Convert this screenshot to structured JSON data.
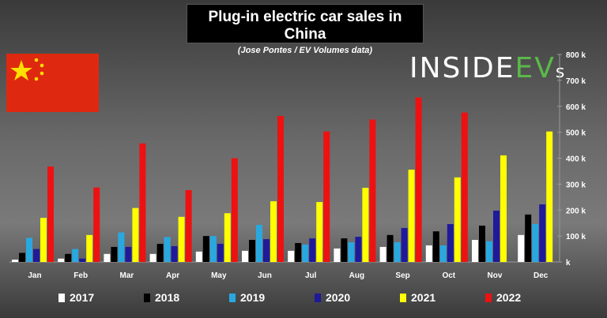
{
  "chart_data": {
    "type": "bar",
    "title": "Plug-in electric car sales in China",
    "subtitle": "(Jose Pontes / EV Volumes data)",
    "categories": [
      "Jan",
      "Feb",
      "Mar",
      "Apr",
      "May",
      "Jun",
      "Jul",
      "Aug",
      "Sep",
      "Oct",
      "Nov",
      "Dec"
    ],
    "ylim": [
      0,
      800000
    ],
    "yticks": [
      "k",
      "100 k",
      "200 k",
      "300 k",
      "400 k",
      "500 k",
      "600 k",
      "700 k",
      "800 k"
    ],
    "legend_position": "bottom",
    "grid": false,
    "series": [
      {
        "name": "2017",
        "color": "#ffffff",
        "values": [
          9000,
          13000,
          31000,
          31000,
          40000,
          43000,
          43000,
          52000,
          58000,
          64000,
          85000,
          104000
        ]
      },
      {
        "name": "2018",
        "color": "#000000",
        "values": [
          35000,
          31000,
          58000,
          70000,
          100000,
          85000,
          73000,
          91000,
          104000,
          118000,
          140000,
          183000
        ]
      },
      {
        "name": "2019",
        "color": "#29a8e0",
        "values": [
          93000,
          50000,
          114000,
          96000,
          100000,
          143000,
          67000,
          76000,
          76000,
          64000,
          80000,
          146000
        ]
      },
      {
        "name": "2020",
        "color": "#1f1a9a",
        "values": [
          50000,
          13000,
          58000,
          61000,
          70000,
          88000,
          91000,
          97000,
          131000,
          146000,
          198000,
          222000
        ]
      },
      {
        "name": "2021",
        "color": "#ffff00",
        "values": [
          170000,
          104000,
          208000,
          174000,
          188000,
          234000,
          231000,
          286000,
          356000,
          326000,
          411000,
          503000
        ]
      },
      {
        "name": "2022",
        "color": "#ee1111",
        "values": [
          368000,
          287000,
          457000,
          277000,
          400000,
          563000,
          503000,
          549000,
          634000,
          576000,
          null,
          null
        ]
      }
    ]
  },
  "logo": {
    "text_white": "INSIDE",
    "text_green": "EV",
    "text_s": "s"
  },
  "flag": "china-flag"
}
